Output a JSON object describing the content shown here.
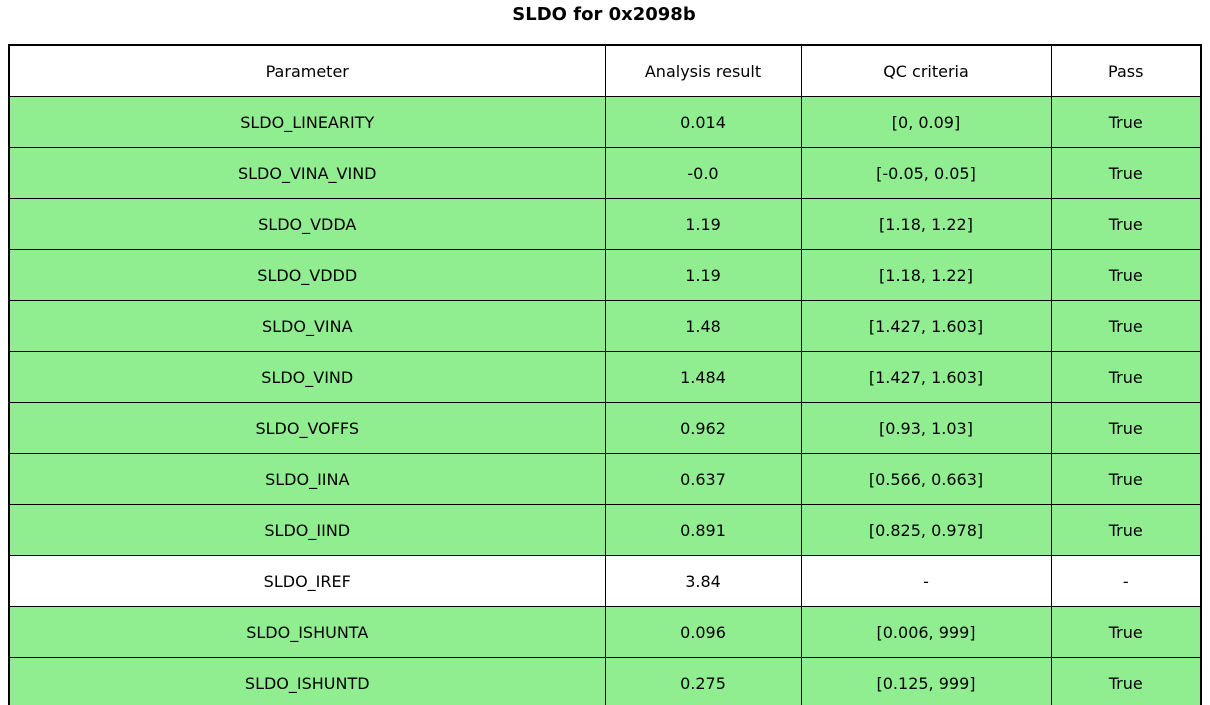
{
  "title": "SLDO for 0x2098b",
  "colors": {
    "pass_row_green": "#90EE90",
    "neutral_row_white": "#FFFFFF",
    "border_black": "#000000"
  },
  "table": {
    "columns": [
      "Parameter",
      "Analysis result",
      "QC criteria",
      "Pass"
    ],
    "rows": [
      {
        "parameter": "SLDO_LINEARITY",
        "result": "0.014",
        "criteria": "[0, 0.09]",
        "pass": "True",
        "highlight": true
      },
      {
        "parameter": "SLDO_VINA_VIND",
        "result": "-0.0",
        "criteria": "[-0.05, 0.05]",
        "pass": "True",
        "highlight": true
      },
      {
        "parameter": "SLDO_VDDA",
        "result": "1.19",
        "criteria": "[1.18, 1.22]",
        "pass": "True",
        "highlight": true
      },
      {
        "parameter": "SLDO_VDDD",
        "result": "1.19",
        "criteria": "[1.18, 1.22]",
        "pass": "True",
        "highlight": true
      },
      {
        "parameter": "SLDO_VINA",
        "result": "1.48",
        "criteria": "[1.427, 1.603]",
        "pass": "True",
        "highlight": true
      },
      {
        "parameter": "SLDO_VIND",
        "result": "1.484",
        "criteria": "[1.427, 1.603]",
        "pass": "True",
        "highlight": true
      },
      {
        "parameter": "SLDO_VOFFS",
        "result": "0.962",
        "criteria": "[0.93, 1.03]",
        "pass": "True",
        "highlight": true
      },
      {
        "parameter": "SLDO_IINA",
        "result": "0.637",
        "criteria": "[0.566, 0.663]",
        "pass": "True",
        "highlight": true
      },
      {
        "parameter": "SLDO_IIND",
        "result": "0.891",
        "criteria": "[0.825, 0.978]",
        "pass": "True",
        "highlight": true
      },
      {
        "parameter": "SLDO_IREF",
        "result": "3.84",
        "criteria": "-",
        "pass": "-",
        "highlight": false
      },
      {
        "parameter": "SLDO_ISHUNTA",
        "result": "0.096",
        "criteria": "[0.006, 999]",
        "pass": "True",
        "highlight": true
      },
      {
        "parameter": "SLDO_ISHUNTD",
        "result": "0.275",
        "criteria": "[0.125, 999]",
        "pass": "True",
        "highlight": true
      }
    ]
  },
  "chart_data": {
    "type": "table",
    "title": "SLDO for 0x2098b",
    "columns": [
      "Parameter",
      "Analysis result",
      "QC criteria",
      "Pass"
    ],
    "rows": [
      [
        "SLDO_LINEARITY",
        "0.014",
        "[0, 0.09]",
        "True"
      ],
      [
        "SLDO_VINA_VIND",
        "-0.0",
        "[-0.05, 0.05]",
        "True"
      ],
      [
        "SLDO_VDDA",
        "1.19",
        "[1.18, 1.22]",
        "True"
      ],
      [
        "SLDO_VDDD",
        "1.19",
        "[1.18, 1.22]",
        "True"
      ],
      [
        "SLDO_VINA",
        "1.48",
        "[1.427, 1.603]",
        "True"
      ],
      [
        "SLDO_VIND",
        "1.484",
        "[1.427, 1.603]",
        "True"
      ],
      [
        "SLDO_VOFFS",
        "0.962",
        "[0.93, 1.03]",
        "True"
      ],
      [
        "SLDO_IINA",
        "0.637",
        "[0.566, 0.663]",
        "True"
      ],
      [
        "SLDO_IIND",
        "0.891",
        "[0.825, 0.978]",
        "True"
      ],
      [
        "SLDO_IREF",
        "3.84",
        "-",
        "-"
      ],
      [
        "SLDO_ISHUNTA",
        "0.096",
        "[0.006, 999]",
        "True"
      ],
      [
        "SLDO_ISHUNTD",
        "0.275",
        "[0.125, 999]",
        "True"
      ]
    ],
    "layout": {
      "pass_rows_filled_green": true,
      "header_row_unfilled": true,
      "cell_text_alignment": "center"
    }
  }
}
